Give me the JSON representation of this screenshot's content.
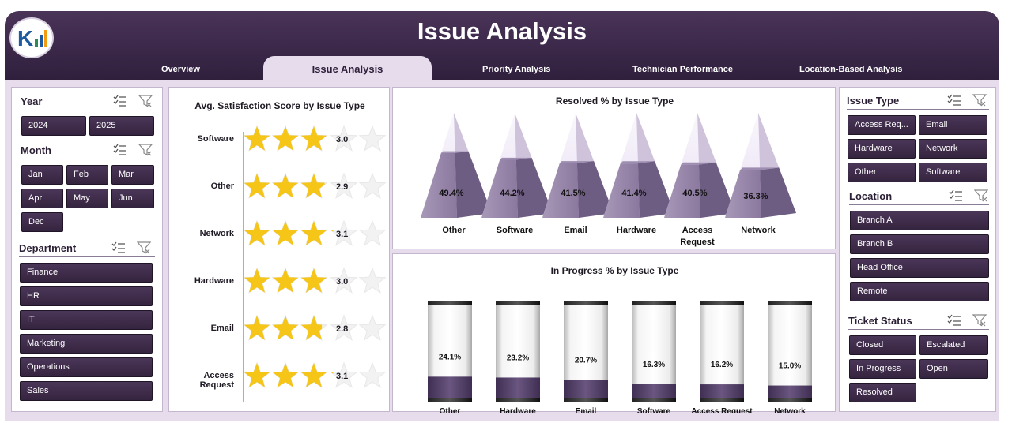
{
  "header": {
    "title": "Issue Analysis"
  },
  "tabs": [
    {
      "label": "Overview"
    },
    {
      "label": "Issue Analysis"
    },
    {
      "label": "Priority Analysis"
    },
    {
      "label": "Technician Performance"
    },
    {
      "label": "Location-Based Analysis"
    }
  ],
  "left_panel": {
    "year": {
      "title": "Year",
      "items": [
        "2024",
        "2025"
      ]
    },
    "month": {
      "title": "Month",
      "items": [
        "Jan",
        "Feb",
        "Mar",
        "Apr",
        "May",
        "Jun",
        "Dec"
      ]
    },
    "department": {
      "title": "Department",
      "items": [
        "Finance",
        "HR",
        "IT",
        "Marketing",
        "Operations",
        "Sales"
      ]
    }
  },
  "right_panel": {
    "issue_type": {
      "title": "Issue Type",
      "items": [
        "Access Req...",
        "Email",
        "Hardware",
        "Network",
        "Other",
        "Software"
      ]
    },
    "location": {
      "title": "Location",
      "items": [
        "Branch A",
        "Branch B",
        "Head Office",
        "Remote"
      ]
    },
    "ticket_status": {
      "title": "Ticket Status",
      "items": [
        "Closed",
        "Escalated",
        "In Progress",
        "Open",
        "Resolved"
      ]
    }
  },
  "icon_names": [
    "multi-select-icon",
    "clear-filter-icon"
  ],
  "colors": {
    "header": "#3a2748",
    "accent": "#3d2a4a",
    "bar_fill": "#5a4470",
    "star": "#f5c518",
    "pyramid": "#8b7a9e"
  },
  "chart_data": [
    {
      "type": "bar",
      "title": "Avg. Satisfaction Score by Issue Type",
      "categories": [
        "Software",
        "Other",
        "Network",
        "Hardware",
        "Email",
        "Access Request"
      ],
      "values": [
        3.0,
        2.9,
        3.1,
        3.0,
        2.8,
        3.1
      ],
      "max_stars": 5
    },
    {
      "type": "bar",
      "title": "Resolved % by Issue Type",
      "categories": [
        "Other",
        "Software",
        "Email",
        "Hardware",
        "Access Request",
        "Network"
      ],
      "values": [
        49.4,
        44.2,
        41.5,
        41.4,
        40.5,
        36.3
      ],
      "labels": [
        "49.4%",
        "44.2%",
        "41.5%",
        "41.4%",
        "40.5%",
        "36.3%"
      ]
    },
    {
      "type": "bar",
      "title": "In Progress % by Issue Type",
      "categories": [
        "Other",
        "Hardware",
        "Email",
        "Software",
        "Access Request",
        "Network"
      ],
      "values": [
        24.1,
        23.2,
        20.7,
        16.3,
        16.2,
        15.0
      ],
      "labels": [
        "24.1%",
        "23.2%",
        "20.7%",
        "16.3%",
        "16.2%",
        "15.0%"
      ]
    }
  ]
}
